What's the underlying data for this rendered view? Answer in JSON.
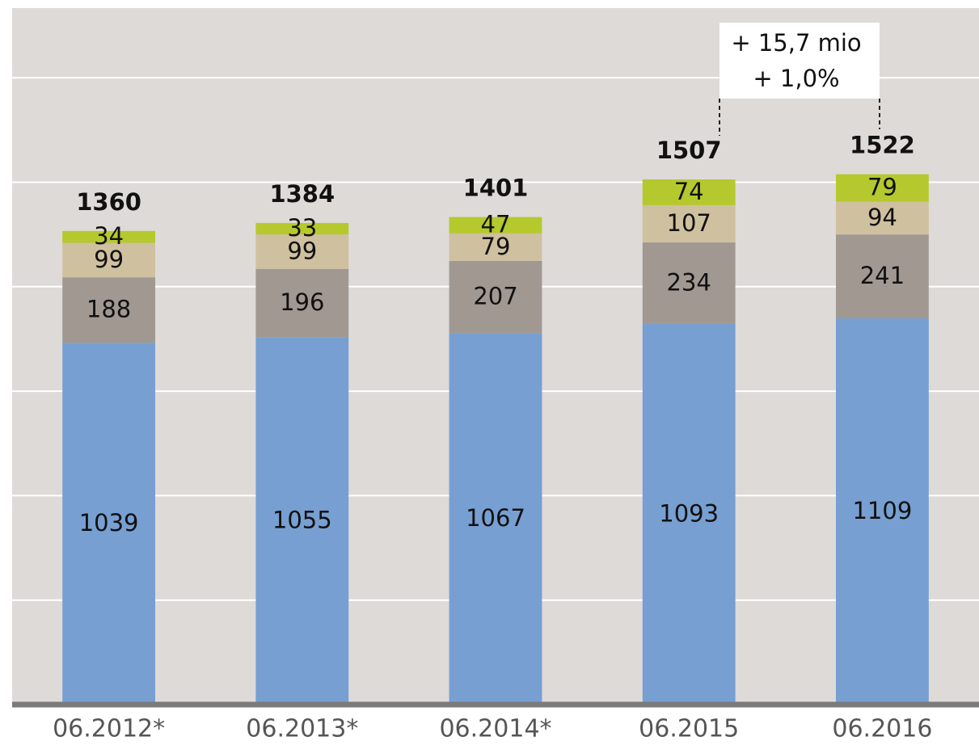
{
  "chart_data": {
    "type": "stacked-bar",
    "categories": [
      "06.2012*",
      "06.2013*",
      "06.2014*",
      "06.2015",
      "06.2016"
    ],
    "series": [
      {
        "color": "#779fd1",
        "values": [
          1039,
          1055,
          1067,
          1093,
          1109
        ]
      },
      {
        "color": "#a19892",
        "values": [
          188,
          196,
          207,
          234,
          241
        ]
      },
      {
        "color": "#cfc0a0",
        "values": [
          99,
          99,
          79,
          107,
          94
        ]
      },
      {
        "color": "#b5c92e",
        "values": [
          34,
          33,
          47,
          74,
          79
        ]
      }
    ],
    "totals": [
      1360,
      1384,
      1401,
      1507,
      1522
    ],
    "annotation": [
      "+ 15,7 mio",
      "+ 1,0%"
    ],
    "ylim": [
      0,
      2000
    ],
    "yticks": [
      0,
      300,
      600,
      900,
      1200,
      1500,
      1800
    ],
    "grid": true
  }
}
